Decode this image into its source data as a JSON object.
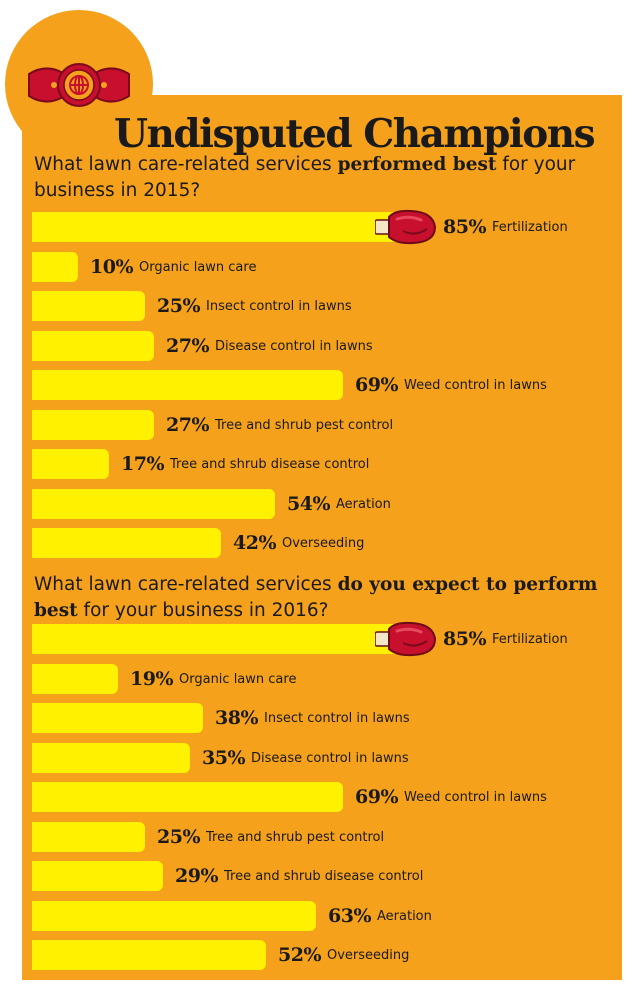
{
  "title": "Undisputed Champions",
  "sections": [
    {
      "question_pre": "What lawn care-related services ",
      "question_bold": "performed best",
      "question_post": " for your business in 2015?"
    },
    {
      "question_pre": "What lawn care-related services ",
      "question_bold": "do you expect to perform best",
      "question_post": " for your business in 2016?"
    }
  ],
  "chart_data": [
    {
      "type": "bar",
      "orientation": "horizontal",
      "title": "What lawn care-related services performed best for your business in 2015?",
      "categories": [
        "Fertilization",
        "Organic lawn care",
        "Insect control in lawns",
        "Disease control in lawns",
        "Weed control in lawns",
        "Tree and shrub pest control",
        "Tree and shrub disease control",
        "Aeration",
        "Overseeding"
      ],
      "values": [
        85,
        10,
        25,
        27,
        69,
        27,
        17,
        54,
        42
      ],
      "value_labels": [
        "85%",
        "10%",
        "25%",
        "27%",
        "69%",
        "27%",
        "17%",
        "54%",
        "42%"
      ],
      "unit": "%",
      "xlim": [
        0,
        100
      ],
      "grid": false,
      "bar_color": "#fff100",
      "background_color": "#f5a11c"
    },
    {
      "type": "bar",
      "orientation": "horizontal",
      "title": "What lawn care-related services do you expect to perform best for your business in 2016?",
      "categories": [
        "Fertilization",
        "Organic lawn care",
        "Insect control in lawns",
        "Disease control in lawns",
        "Weed control in lawns",
        "Tree and shrub pest control",
        "Tree and shrub disease control",
        "Aeration",
        "Overseeding"
      ],
      "values": [
        85,
        19,
        38,
        35,
        69,
        25,
        29,
        63,
        52
      ],
      "value_labels": [
        "85%",
        "19%",
        "38%",
        "35%",
        "69%",
        "25%",
        "29%",
        "63%",
        "52%"
      ],
      "unit": "%",
      "xlim": [
        0,
        100
      ],
      "grid": false,
      "bar_color": "#fff100",
      "background_color": "#f5a11c"
    }
  ],
  "icons": {
    "badge": "championship-belt-icon",
    "top_bar_marker": "boxing-glove-icon"
  },
  "colors": {
    "background": "#f5a11c",
    "bar": "#fff100",
    "belt_red": "#c8102e",
    "belt_gold": "#f5a11c",
    "text": "#1a1a1a"
  }
}
